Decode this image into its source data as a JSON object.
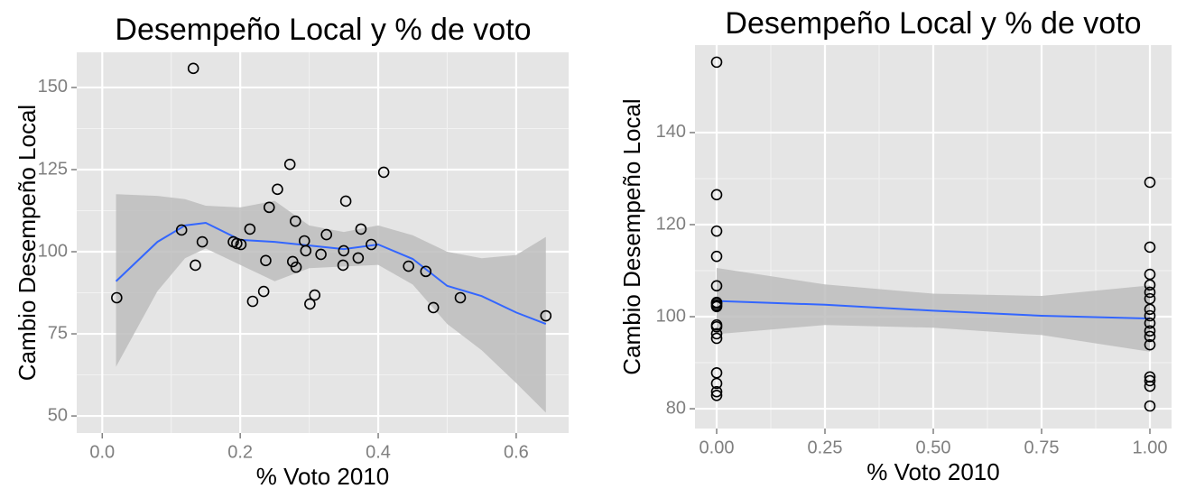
{
  "chart_data": [
    {
      "type": "scatter",
      "title": "Desempeño Local y % de voto",
      "x_label": "% Voto 2010",
      "y_label": "Cambio Desempeño Local",
      "xlim": [
        -0.037,
        0.676
      ],
      "ylim": [
        44.8,
        160.7
      ],
      "xticks": [
        {
          "value": 0,
          "label": "0.0"
        },
        0.2,
        0.4,
        0.6
      ],
      "yticks": [
        50,
        75,
        100,
        125,
        150
      ],
      "grid": true,
      "color": "#000000",
      "x": [
        0.021,
        0.132,
        0.115,
        0.135,
        0.145,
        0.19,
        0.195,
        0.201,
        0.214,
        0.218,
        0.234,
        0.237,
        0.242,
        0.254,
        0.272,
        0.276,
        0.28,
        0.281,
        0.293,
        0.295,
        0.301,
        0.308,
        0.317,
        0.325,
        0.349,
        0.35,
        0.353,
        0.371,
        0.375,
        0.39,
        0.408,
        0.444,
        0.469,
        0.48,
        0.519,
        0.643
      ],
      "values": [
        86,
        155.8,
        106.6,
        95.9,
        103,
        103,
        102.5,
        102.2,
        106.9,
        84.9,
        87.9,
        97.3,
        113.5,
        119,
        126.6,
        97,
        109.3,
        95.3,
        103.3,
        100.3,
        84.1,
        86.8,
        99.2,
        105.2,
        95.9,
        100.3,
        115.4,
        98.1,
        106.9,
        102.2,
        124.2,
        95.6,
        94,
        83,
        86,
        80.5
      ],
      "smooth": {
        "color": "#3366ff",
        "band_color": "#bdbdbd",
        "x": [
          0.02,
          0.08,
          0.12,
          0.15,
          0.2,
          0.25,
          0.3,
          0.35,
          0.4,
          0.45,
          0.5,
          0.55,
          0.6,
          0.643
        ],
        "y": [
          91,
          103,
          108,
          108.8,
          103.6,
          103,
          101.9,
          100.8,
          102.2,
          97.8,
          89.6,
          86.5,
          81.5,
          78
        ],
        "ymin": [
          65,
          88,
          98,
          101,
          96,
          91,
          95,
          95.5,
          96,
          90,
          78,
          70,
          60,
          51
        ],
        "ymax": [
          117.5,
          117,
          116,
          114,
          113.5,
          115.5,
          108,
          106,
          108,
          105,
          100,
          98,
          99,
          104.5
        ]
      }
    },
    {
      "type": "scatter",
      "title": "Desempeño Local y % de voto",
      "x_label": "% Voto 2010",
      "y_label": "Cambio Desempeño Local",
      "xlim": [
        -0.05,
        1.05
      ],
      "ylim": [
        75.7,
        159
      ],
      "xticks": [
        {
          "value": 0,
          "label": "0.00"
        },
        {
          "value": 0.25,
          "label": "0.25"
        },
        {
          "value": 0.5,
          "label": "0.50"
        },
        {
          "value": 0.75,
          "label": "0.75"
        },
        {
          "value": 1,
          "label": "1.00"
        }
      ],
      "yticks": [
        80,
        100,
        120,
        140
      ],
      "grid": true,
      "color": "#000000",
      "x": [
        0,
        0,
        0,
        0,
        0,
        0,
        0,
        0,
        0,
        0,
        0,
        0,
        0,
        0,
        0,
        0,
        0,
        1,
        1,
        1,
        1,
        1,
        1,
        1,
        1,
        1,
        1,
        1,
        1,
        1,
        1,
        1,
        1
      ],
      "values": [
        155.3,
        126.5,
        118.6,
        113.1,
        106.7,
        103.1,
        102.9,
        102.5,
        102.2,
        98.2,
        97.8,
        96.3,
        95.3,
        87.8,
        85.5,
        83.7,
        82.9,
        129.2,
        115.1,
        109.2,
        106.9,
        105.3,
        103.9,
        101.6,
        100.2,
        98.6,
        96.9,
        95.7,
        93.9,
        86.9,
        86.1,
        84.9,
        80.6
      ],
      "smooth": {
        "color": "#3366ff",
        "band_color": "#bdbdbd",
        "x": [
          0,
          0.25,
          0.5,
          0.75,
          1
        ],
        "y": [
          103.4,
          102.6,
          101.3,
          100.2,
          99.6
        ],
        "ymin": [
          96.2,
          98.2,
          97.6,
          96,
          92.4
        ],
        "ymax": [
          110.6,
          107,
          105,
          104.5,
          106.8
        ]
      }
    }
  ]
}
